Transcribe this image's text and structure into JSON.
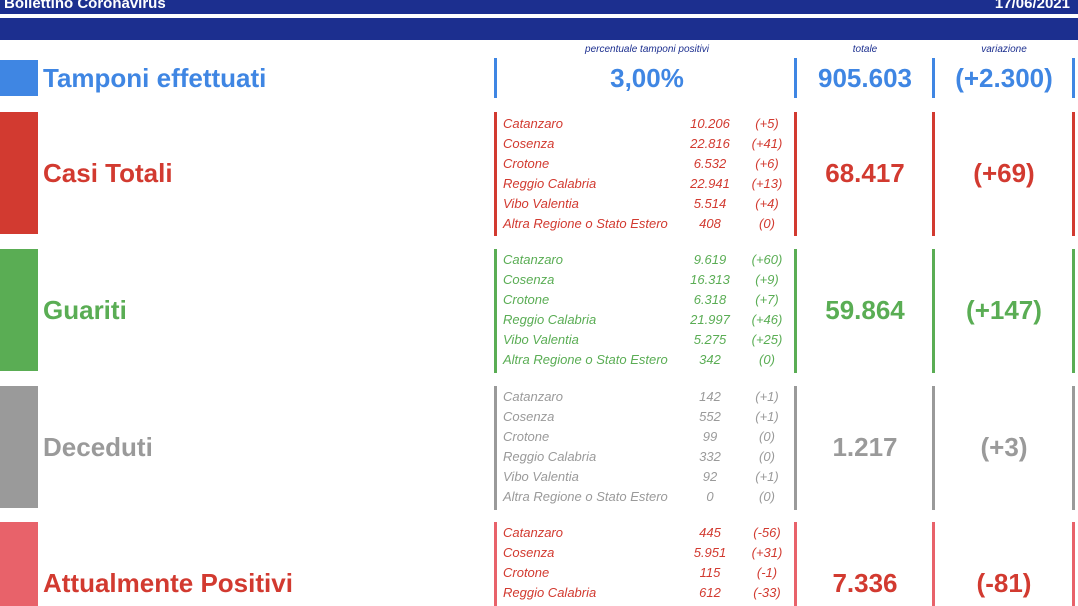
{
  "header": {
    "title": "Bollettino Coronavirus",
    "date": "17/06/2021",
    "col_percent": "percentuale tamponi positivi",
    "col_totale": "totale",
    "col_variazione": "variazione"
  },
  "colors": {
    "navy": "#1c2f8f",
    "blue": "#3f86e3",
    "red": "#d23a30",
    "green": "#5aad54",
    "gray": "#9a9a9a",
    "pink": "#e8626a"
  },
  "tamponi": {
    "label": "Tamponi effettuati",
    "percent": "3,00%",
    "totale": "905.603",
    "variazione": "(+2.300)"
  },
  "casi": {
    "label": "Casi Totali",
    "totale": "68.417",
    "variazione": "(+69)",
    "rows": [
      {
        "name": "Catanzaro",
        "val": "10.206",
        "var": "(+5)"
      },
      {
        "name": "Cosenza",
        "val": "22.816",
        "var": "(+41)"
      },
      {
        "name": "Crotone",
        "val": "6.532",
        "var": "(+6)"
      },
      {
        "name": "Reggio Calabria",
        "val": "22.941",
        "var": "(+13)"
      },
      {
        "name": "Vibo Valentia",
        "val": "5.514",
        "var": "(+4)"
      },
      {
        "name": "Altra Regione o Stato Estero",
        "val": "408",
        "var": "(0)"
      }
    ]
  },
  "guariti": {
    "label": "Guariti",
    "totale": "59.864",
    "variazione": "(+147)",
    "rows": [
      {
        "name": "Catanzaro",
        "val": "9.619",
        "var": "(+60)"
      },
      {
        "name": "Cosenza",
        "val": "16.313",
        "var": "(+9)"
      },
      {
        "name": "Crotone",
        "val": "6.318",
        "var": "(+7)"
      },
      {
        "name": "Reggio Calabria",
        "val": "21.997",
        "var": "(+46)"
      },
      {
        "name": "Vibo Valentia",
        "val": "5.275",
        "var": "(+25)"
      },
      {
        "name": "Altra Regione o Stato Estero",
        "val": "342",
        "var": "(0)"
      }
    ]
  },
  "deceduti": {
    "label": "Deceduti",
    "totale": "1.217",
    "variazione": "(+3)",
    "rows": [
      {
        "name": "Catanzaro",
        "val": "142",
        "var": "(+1)"
      },
      {
        "name": "Cosenza",
        "val": "552",
        "var": "(+1)"
      },
      {
        "name": "Crotone",
        "val": "99",
        "var": "(0)"
      },
      {
        "name": "Reggio Calabria",
        "val": "332",
        "var": "(0)"
      },
      {
        "name": "Vibo Valentia",
        "val": "92",
        "var": "(+1)"
      },
      {
        "name": "Altra Regione o Stato Estero",
        "val": "0",
        "var": "(0)"
      }
    ]
  },
  "positivi": {
    "label": "Attualmente Positivi",
    "totale": "7.336",
    "variazione": "(-81)",
    "rows": [
      {
        "name": "Catanzaro",
        "val": "445",
        "var": "(-56)"
      },
      {
        "name": "Cosenza",
        "val": "5.951",
        "var": "(+31)"
      },
      {
        "name": "Crotone",
        "val": "115",
        "var": "(-1)"
      },
      {
        "name": "Reggio Calabria",
        "val": "612",
        "var": "(-33)"
      }
    ]
  }
}
